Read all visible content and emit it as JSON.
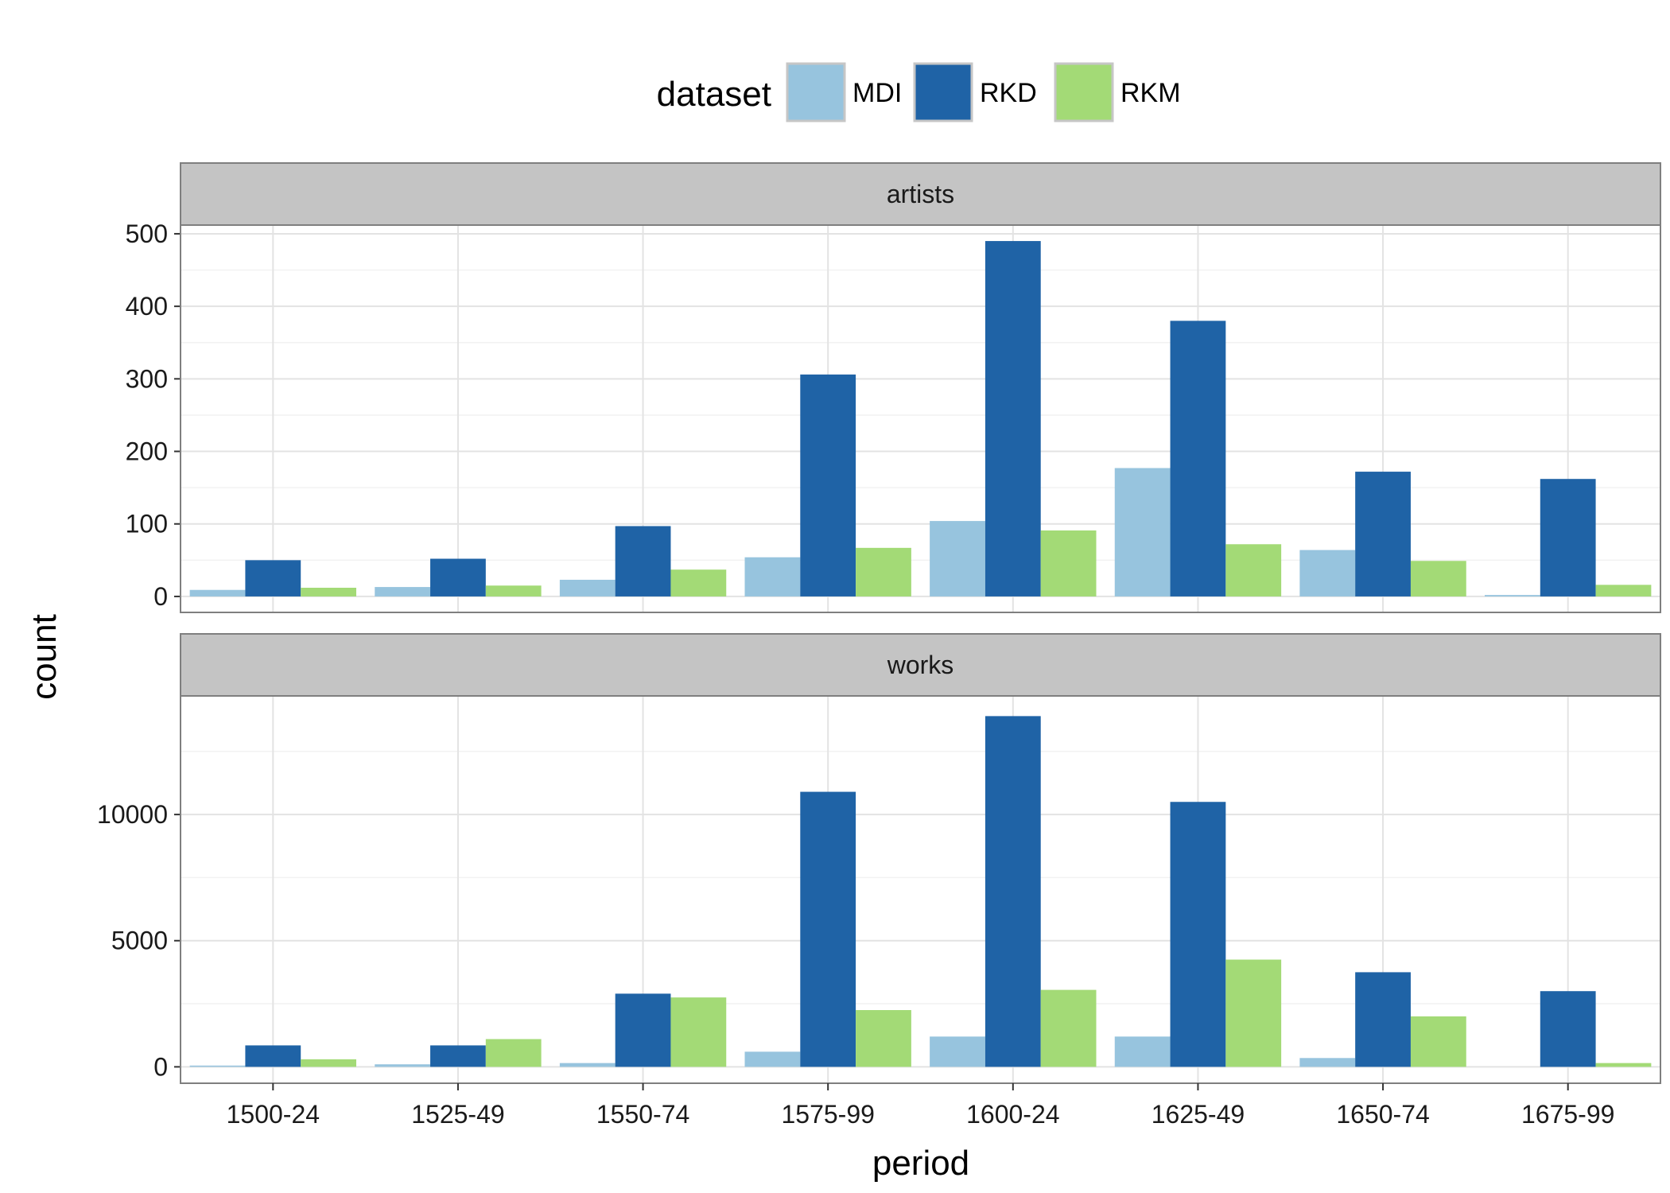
{
  "chart_data": {
    "type": "bar",
    "xlabel": "period",
    "ylabel": "count",
    "categories": [
      "1500-24",
      "1525-49",
      "1550-74",
      "1575-99",
      "1600-24",
      "1625-49",
      "1650-74",
      "1675-99"
    ],
    "legend": {
      "title": "dataset",
      "placement": "top",
      "entries": [
        {
          "name": "MDI",
          "color": "#97c4de"
        },
        {
          "name": "RKD",
          "color": "#1f63a6"
        },
        {
          "name": "RKM",
          "color": "#a3da76"
        }
      ]
    },
    "grid": true,
    "panels": [
      {
        "label": "artists",
        "ylim": [
          -22,
          512
        ],
        "yticks": [
          0,
          100,
          200,
          300,
          400,
          500
        ],
        "series": [
          {
            "name": "MDI",
            "values": [
              9,
              13,
              23,
              54,
              104,
              177,
              64,
              2
            ]
          },
          {
            "name": "RKD",
            "values": [
              50,
              52,
              97,
              306,
              490,
              380,
              172,
              162
            ]
          },
          {
            "name": "RKM",
            "values": [
              12,
              15,
              37,
              67,
              91,
              72,
              49,
              16
            ]
          }
        ]
      },
      {
        "label": "works",
        "ylim": [
          -650,
          14700
        ],
        "yticks": [
          0,
          5000,
          10000
        ],
        "series": [
          {
            "name": "MDI",
            "values": [
              50,
              100,
              150,
              600,
              1200,
              1200,
              350,
              0
            ]
          },
          {
            "name": "RKD",
            "values": [
              850,
              850,
              2900,
              10900,
              13900,
              10500,
              3750,
              3000
            ]
          },
          {
            "name": "RKM",
            "values": [
              300,
              1100,
              2750,
              2250,
              3050,
              4250,
              2000,
              150
            ]
          }
        ]
      }
    ]
  }
}
